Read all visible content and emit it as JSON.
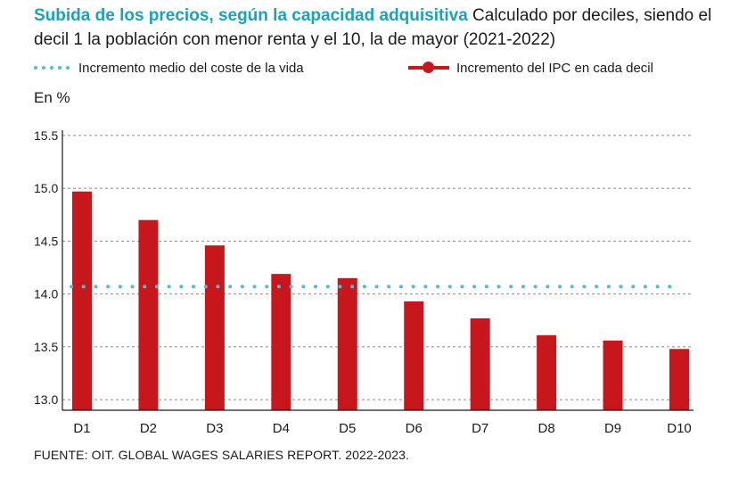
{
  "header": {
    "title": "Subida de los precios, según la capacidad adquisitiva",
    "subtitle": "Calculado por deciles, siendo el decil 1 la población con menor renta y el 10, la de mayor (2021-2022)"
  },
  "legend": {
    "average_label": "Incremento medio del coste de la vida",
    "ipc_label": "Incremento del IPC en cada decil"
  },
  "unit_label": "En %",
  "source": "FUENTE: OIT. GLOBAL WAGES SALARIES REPORT. 2022-2023.",
  "colors": {
    "bar": "#c8161d",
    "avg_line": "#4dbfd0",
    "title": "#1aa3b8",
    "grid": "#8c8c8c"
  },
  "chart_data": {
    "type": "bar",
    "categories": [
      "D1",
      "D2",
      "D3",
      "D4",
      "D5",
      "D6",
      "D7",
      "D8",
      "D9",
      "D10"
    ],
    "series": [
      {
        "name": "Incremento del IPC en cada decil",
        "values": [
          14.97,
          14.7,
          14.46,
          14.19,
          14.15,
          13.93,
          13.77,
          13.61,
          13.56,
          13.48
        ]
      }
    ],
    "reference_line": {
      "name": "Incremento medio del coste de la vida",
      "value": 14.07
    },
    "yticks": [
      "13.0",
      "13.5",
      "14.0",
      "14.5",
      "15.0",
      "15.5"
    ],
    "ylim": [
      12.9,
      15.55
    ],
    "ylabel": "En %",
    "grid": true
  }
}
